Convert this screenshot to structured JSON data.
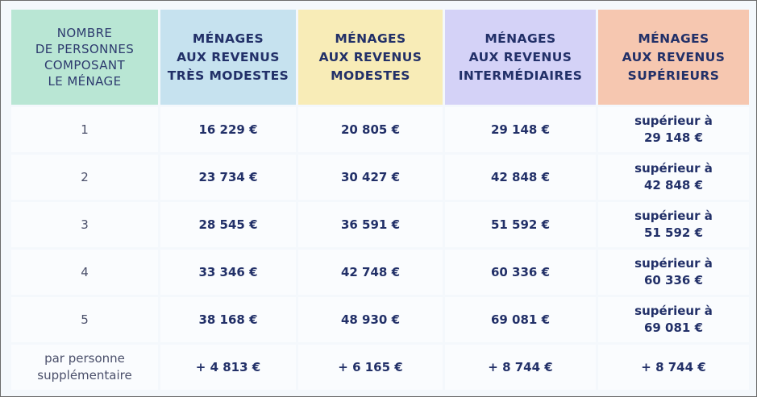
{
  "headers": [
    [
      "NOMBRE",
      "DE PERSONNES",
      "COMPOSANT",
      "LE MÉNAGE"
    ],
    [
      "MÉNAGES",
      "AUX REVENUS",
      "TRÈS MODESTES"
    ],
    [
      "MÉNAGES",
      "AUX REVENUS",
      "MODESTES"
    ],
    [
      "MÉNAGES",
      "AUX REVENUS",
      "INTERMÉDIAIRES"
    ],
    [
      "MÉNAGES",
      "AUX REVENUS",
      "SUPÉRIEURS"
    ]
  ],
  "rows": [
    {
      "persons": [
        "1"
      ],
      "tres_modestes": "16 229 €",
      "modestes": "20 805 €",
      "intermediaires": "29 148 €",
      "superieurs": [
        "supérieur à",
        "29 148 €"
      ]
    },
    {
      "persons": [
        "2"
      ],
      "tres_modestes": "23 734 €",
      "modestes": "30 427 €",
      "intermediaires": "42 848 €",
      "superieurs": [
        "supérieur à",
        "42 848 €"
      ]
    },
    {
      "persons": [
        "3"
      ],
      "tres_modestes": "28 545 €",
      "modestes": "36 591 €",
      "intermediaires": "51 592 €",
      "superieurs": [
        "supérieur à",
        "51 592 €"
      ]
    },
    {
      "persons": [
        "4"
      ],
      "tres_modestes": "33 346 €",
      "modestes": "42 748 €",
      "intermediaires": "60 336 €",
      "superieurs": [
        "supérieur à",
        "60 336 €"
      ]
    },
    {
      "persons": [
        "5"
      ],
      "tres_modestes": "38 168 €",
      "modestes": "48 930 €",
      "intermediaires": "69 081 €",
      "superieurs": [
        "supérieur à",
        "69 081 €"
      ]
    },
    {
      "persons": [
        "par personne",
        "supplémentaire"
      ],
      "tres_modestes": "+ 4 813 €",
      "modestes": "+ 6 165 €",
      "intermediaires": "+ 8 744 €",
      "superieurs": [
        "+ 8 744 €"
      ]
    }
  ]
}
